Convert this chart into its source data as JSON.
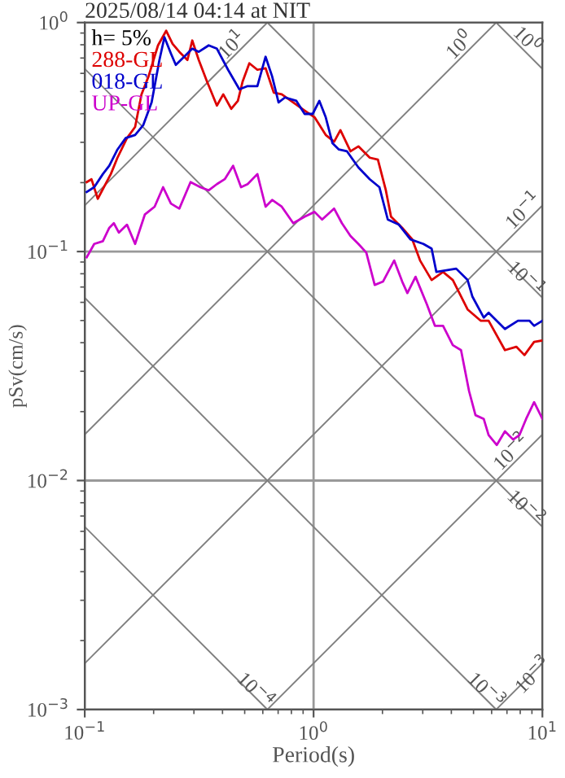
{
  "chart_data": {
    "type": "line",
    "title": "2025/08/14 04:14 at NIT",
    "xlabel": "Period(s)",
    "ylabel": "pSv(cm/s)",
    "legend_title": "h= 5%",
    "legend": "top left",
    "log": "xy",
    "grid": true,
    "xlim": [
      0.1,
      10
    ],
    "ylim": [
      0.001,
      1
    ],
    "xticks": [
      {
        "value": 0.1,
        "label": "10$^{−1}$"
      },
      {
        "value": 1,
        "label": "10$^{0}$"
      },
      {
        "value": 10,
        "label": "10$^{1}$"
      }
    ],
    "yticks": [
      {
        "value": 0.001,
        "label": "10$^{−3}$"
      },
      {
        "value": 0.01,
        "label": "10$^{−2}$"
      },
      {
        "value": 0.1,
        "label": "10$^{−1}$"
      },
      {
        "value": 1,
        "label": "10$^{0}$"
      }
    ],
    "series": [
      {
        "name": "288-GL",
        "color": "#dd0000",
        "x": [
          0.102,
          0.107,
          0.114,
          0.13,
          0.139,
          0.153,
          0.166,
          0.177,
          0.19,
          0.209,
          0.227,
          0.242,
          0.259,
          0.281,
          0.295,
          0.315,
          0.342,
          0.378,
          0.403,
          0.437,
          0.467,
          0.49,
          0.524,
          0.568,
          0.617,
          0.67,
          0.726,
          0.815,
          0.914,
          1.01,
          1.13,
          1.23,
          1.31,
          1.45,
          1.57,
          1.76,
          1.91,
          2.07,
          2.18,
          2.44,
          2.7,
          2.92,
          3.28,
          3.68,
          4.06,
          4.71,
          5.37,
          5.82,
          6.86,
          7.69,
          8.35,
          9.2,
          10
        ],
        "values": [
          0.201,
          0.207,
          0.17,
          0.218,
          0.257,
          0.313,
          0.35,
          0.486,
          0.582,
          0.795,
          0.921,
          0.808,
          0.745,
          0.686,
          0.835,
          0.686,
          0.554,
          0.434,
          0.486,
          0.42,
          0.455,
          0.554,
          0.664,
          0.622,
          0.632,
          0.494,
          0.486,
          0.448,
          0.413,
          0.386,
          0.323,
          0.302,
          0.339,
          0.274,
          0.288,
          0.257,
          0.252,
          0.185,
          0.142,
          0.127,
          0.113,
          0.0914,
          0.0751,
          0.0815,
          0.0751,
          0.0559,
          0.0499,
          0.0499,
          0.0371,
          0.0384,
          0.0353,
          0.0403,
          0.0409
        ]
      },
      {
        "name": "018-GL",
        "color": "#0000cc",
        "x": [
          0.102,
          0.11,
          0.12,
          0.128,
          0.139,
          0.151,
          0.166,
          0.18,
          0.196,
          0.212,
          0.223,
          0.238,
          0.25,
          0.272,
          0.295,
          0.315,
          0.348,
          0.378,
          0.423,
          0.474,
          0.515,
          0.568,
          0.617,
          0.659,
          0.703,
          0.75,
          0.841,
          0.914,
          0.991,
          1.06,
          1.13,
          1.21,
          1.29,
          1.4,
          1.57,
          1.76,
          1.94,
          2.11,
          2.36,
          2.65,
          3.02,
          3.28,
          3.44,
          4.2,
          4.71,
          4.94,
          5.54,
          5.82,
          6.86,
          7.82,
          8.77,
          9.2,
          10
        ],
        "values": [
          0.182,
          0.191,
          0.218,
          0.237,
          0.279,
          0.313,
          0.323,
          0.356,
          0.448,
          0.686,
          0.863,
          0.733,
          0.653,
          0.709,
          0.769,
          0.745,
          0.795,
          0.769,
          0.622,
          0.511,
          0.528,
          0.528,
          0.709,
          0.582,
          0.448,
          0.471,
          0.455,
          0.399,
          0.399,
          0.455,
          0.386,
          0.297,
          0.279,
          0.274,
          0.233,
          0.207,
          0.191,
          0.138,
          0.131,
          0.113,
          0.108,
          0.103,
          0.0815,
          0.0842,
          0.0751,
          0.0637,
          0.0515,
          0.0541,
          0.0459,
          0.0499,
          0.0499,
          0.0474,
          0.0499
        ]
      },
      {
        "name": "UP-GL",
        "color": "#cc00cc",
        "x": [
          0.102,
          0.11,
          0.12,
          0.128,
          0.134,
          0.141,
          0.153,
          0.166,
          0.183,
          0.202,
          0.22,
          0.238,
          0.259,
          0.29,
          0.32,
          0.348,
          0.378,
          0.409,
          0.445,
          0.482,
          0.515,
          0.568,
          0.617,
          0.659,
          0.726,
          0.815,
          0.914,
          1.01,
          1.09,
          1.23,
          1.33,
          1.45,
          1.57,
          1.7,
          1.85,
          2.01,
          2.25,
          2.44,
          2.57,
          2.79,
          3.13,
          3.39,
          3.68,
          4.06,
          4.41,
          4.78,
          5.1,
          5.54,
          5.82,
          6.32,
          6.86,
          7.45,
          7.94,
          8.49,
          9.2,
          10
        ],
        "values": [
          0.0944,
          0.108,
          0.111,
          0.127,
          0.133,
          0.121,
          0.131,
          0.108,
          0.145,
          0.157,
          0.191,
          0.162,
          0.154,
          0.201,
          0.191,
          0.185,
          0.197,
          0.207,
          0.237,
          0.191,
          0.197,
          0.218,
          0.157,
          0.168,
          0.157,
          0.133,
          0.142,
          0.149,
          0.138,
          0.154,
          0.133,
          0.117,
          0.108,
          0.099,
          0.0715,
          0.0739,
          0.0914,
          0.0739,
          0.0659,
          0.0776,
          0.0587,
          0.0474,
          0.0474,
          0.039,
          0.0371,
          0.0246,
          0.0193,
          0.0186,
          0.0158,
          0.0143,
          0.0164,
          0.0151,
          0.0158,
          0.0186,
          0.022,
          0.0186
        ]
      },
      {
        "color": "#808080",
        "x": [
          0.1,
          0.628
        ],
        "values": [
          0.159,
          1
        ]
      },
      {
        "color": "#808080",
        "x": [
          0.1,
          6.28
        ],
        "values": [
          0.0159,
          1
        ]
      },
      {
        "color": "#808080",
        "x": [
          0.1,
          10
        ],
        "values": [
          0.00159,
          0.159
        ]
      },
      {
        "color": "#808080",
        "x": [
          0.628,
          10
        ],
        "values": [
          0.001,
          0.0159
        ]
      },
      {
        "color": "#808080",
        "x": [
          6.28,
          10
        ],
        "values": [
          0.001,
          0.00159
        ]
      },
      {
        "color": "#808080",
        "x": [
          6.28,
          10
        ],
        "values": [
          1,
          0.628
        ]
      },
      {
        "color": "#808080",
        "x": [
          0.628,
          10
        ],
        "values": [
          1,
          0.0628
        ]
      },
      {
        "color": "#808080",
        "x": [
          0.1,
          10
        ],
        "values": [
          0.628,
          0.00628
        ]
      },
      {
        "color": "#808080",
        "x": [
          0.1,
          6.28
        ],
        "values": [
          0.0628,
          0.001
        ]
      },
      {
        "color": "#808080",
        "x": [
          0.1,
          0.628
        ],
        "values": [
          0.00628,
          0.001
        ]
      }
    ],
    "annotations": [
      {
        "text": "10$^{1}$",
        "x": 0.445,
        "y": 0.79
      },
      {
        "text": "10$^{0}$",
        "x": 4.4,
        "y": 0.79
      },
      {
        "text": "10$^{0}$",
        "x": 8.5,
        "y": 0.83
      },
      {
        "text": "10$^{−1}$",
        "x": 8.35,
        "y": 0.149
      },
      {
        "text": "10$^{−1}$",
        "x": 8.35,
        "y": 0.0752
      },
      {
        "text": "10$^{−2}$",
        "x": 7.4,
        "y": 0.0132
      },
      {
        "text": "10$^{−2}$",
        "x": 8.35,
        "y": 0.00752
      },
      {
        "text": "10$^{−4}$",
        "x": 0.55,
        "y": 0.0012
      },
      {
        "text": "10$^{−3}$",
        "x": 5.6,
        "y": 0.0012
      },
      {
        "text": "10$^{−3}$",
        "x": 9.2,
        "y": 0.0014
      }
    ]
  }
}
